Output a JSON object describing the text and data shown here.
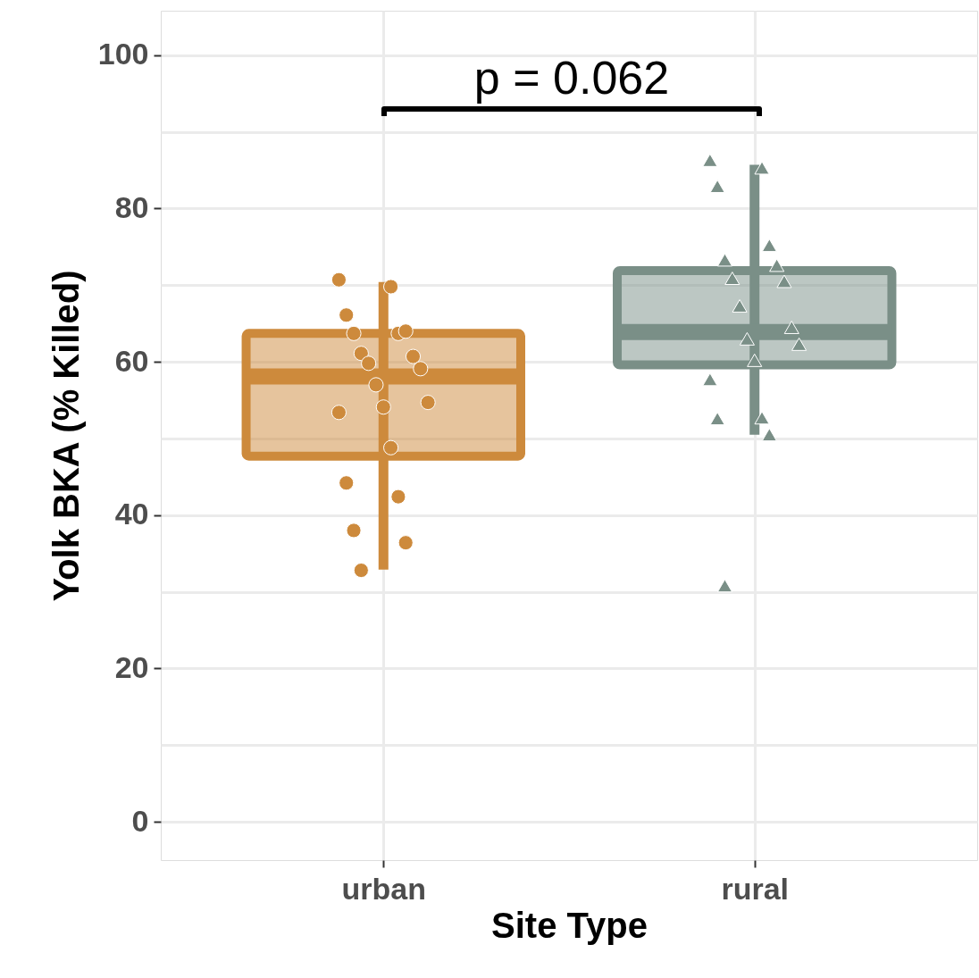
{
  "chart_data": {
    "type": "box",
    "xlabel": "Site Type",
    "ylabel": "Yolk BKA (% Killed)",
    "categories": [
      "urban",
      "rural"
    ],
    "boxes": [
      {
        "low": 32.9,
        "q1": 47.7,
        "median": 58.1,
        "q3": 63.7,
        "high": 70.4
      },
      {
        "low": 50.5,
        "q1": 59.6,
        "median": 63.9,
        "q3": 71.9,
        "high": 85.7
      }
    ],
    "colors": [
      "#cd8a3c",
      "#7a8f87"
    ],
    "series": [
      {
        "type": "scatter",
        "color": "#cd8a3c",
        "marker": "circle",
        "x": [
          "urban",
          "urban",
          "urban",
          "urban",
          "urban",
          "urban",
          "urban",
          "urban",
          "urban",
          "urban",
          "urban",
          "urban",
          "urban",
          "urban",
          "urban",
          "urban",
          "urban",
          "urban",
          "urban",
          "urban"
        ],
        "values": [
          70.7,
          69.8,
          66.1,
          63.7,
          63.7,
          64.0,
          61.1,
          60.7,
          59.8,
          59.1,
          57.0,
          54.7,
          54.1,
          53.4,
          48.8,
          44.2,
          42.4,
          38.0,
          36.4,
          32.8
        ]
      },
      {
        "type": "scatter",
        "color": "#7a8f87",
        "marker": "triangle",
        "x": [
          "rural",
          "rural",
          "rural",
          "rural",
          "rural",
          "rural",
          "rural",
          "rural",
          "rural",
          "rural",
          "rural",
          "rural",
          "rural",
          "rural",
          "rural",
          "rural",
          "rural",
          "rural"
        ],
        "values": [
          86.3,
          85.3,
          82.9,
          75.2,
          73.3,
          72.6,
          70.9,
          70.5,
          67.3,
          64.5,
          63.0,
          62.3,
          60.2,
          57.7,
          52.7,
          52.6,
          50.5,
          30.8
        ]
      }
    ],
    "ylim": [
      -5,
      105.8
    ],
    "yticks": [
      0,
      {
        "value": 10,
        "label": null
      },
      20,
      {
        "value": 30,
        "label": null
      },
      40,
      {
        "value": 50,
        "label": null
      },
      60,
      {
        "value": 70,
        "label": null
      },
      80,
      {
        "value": 90,
        "label": null
      },
      100
    ],
    "grid": true,
    "annotations": [
      "p = 0.062"
    ]
  }
}
